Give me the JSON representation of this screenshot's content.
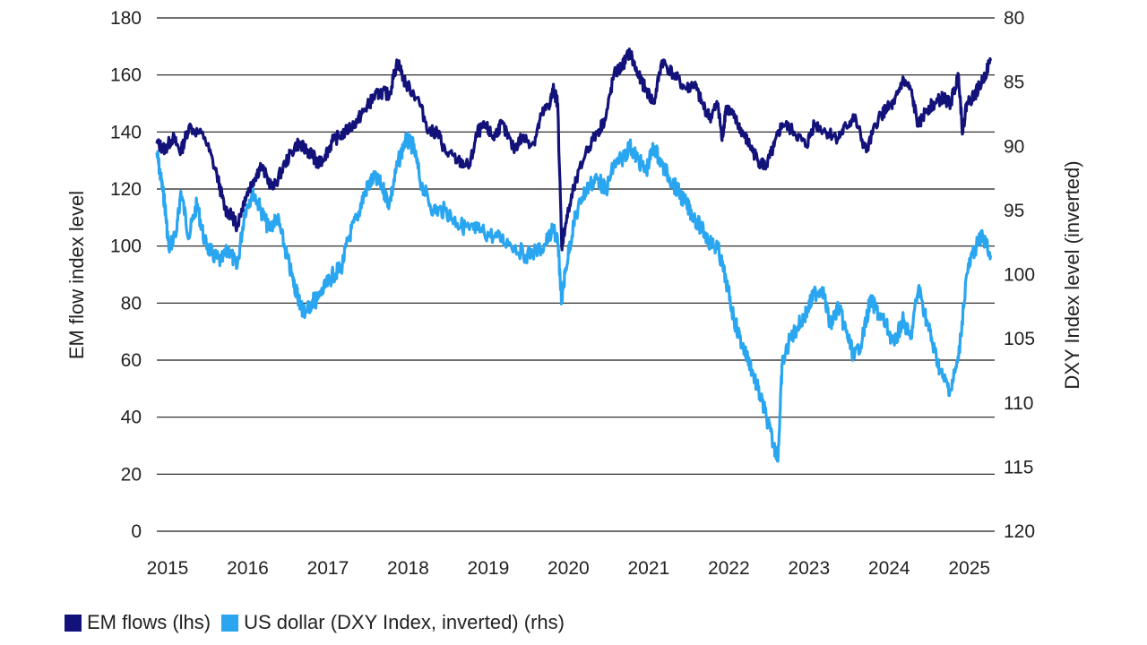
{
  "chart_data": {
    "type": "line",
    "title": "",
    "ylabel_left": "EM flow index level",
    "ylabel_right": "DXY Index level (inverted)",
    "ylim_left": [
      0,
      180
    ],
    "yticks_left": [
      0,
      20,
      40,
      60,
      80,
      100,
      120,
      140,
      160,
      180
    ],
    "ylim_right": [
      120,
      80
    ],
    "yticks_right": [
      80,
      85,
      90,
      95,
      100,
      105,
      110,
      115,
      120
    ],
    "right_axis_inverted": true,
    "xlim": [
      2015.0,
      2025.45
    ],
    "xticks": [
      2015,
      2016,
      2017,
      2018,
      2019,
      2020,
      2021,
      2022,
      2023,
      2024,
      2025
    ],
    "xtick_labels": [
      "2015",
      "2016",
      "2017",
      "2018",
      "2019",
      "2020",
      "2021",
      "2022",
      "2023",
      "2024",
      "2025"
    ],
    "legend": [
      {
        "label": "EM flows (lhs)",
        "color": "#12127a"
      },
      {
        "label": "US dollar (DXY Index, inverted) (rhs)",
        "color": "#2aa6f0"
      }
    ],
    "series": [
      {
        "name": "EM flows (lhs)",
        "axis": "left",
        "color": "#12127a",
        "x": [
          2015.0,
          2015.1,
          2015.2,
          2015.3,
          2015.4,
          2015.6,
          2015.75,
          2015.85,
          2015.95,
          2016.0,
          2016.1,
          2016.2,
          2016.3,
          2016.45,
          2016.6,
          2016.75,
          2016.85,
          2016.95,
          2017.0,
          2017.1,
          2017.2,
          2017.35,
          2017.5,
          2017.6,
          2017.7,
          2017.8,
          2017.9,
          2018.0,
          2018.1,
          2018.25,
          2018.4,
          2018.5,
          2018.6,
          2018.75,
          2018.9,
          2019.0,
          2019.1,
          2019.2,
          2019.3,
          2019.45,
          2019.55,
          2019.7,
          2019.8,
          2019.9,
          2019.95,
          2020.0,
          2020.05,
          2020.1,
          2020.2,
          2020.35,
          2020.5,
          2020.6,
          2020.7,
          2020.8,
          2020.9,
          2021.0,
          2021.1,
          2021.2,
          2021.3,
          2021.45,
          2021.6,
          2021.7,
          2021.8,
          2021.9,
          2022.0,
          2022.05,
          2022.1,
          2022.2,
          2022.3,
          2022.4,
          2022.5,
          2022.6,
          2022.7,
          2022.8,
          2022.95,
          2023.1,
          2023.2,
          2023.35,
          2023.5,
          2023.6,
          2023.7,
          2023.85,
          2024.0,
          2024.1,
          2024.2,
          2024.3,
          2024.4,
          2024.5,
          2024.6,
          2024.7,
          2024.8,
          2024.9,
          2025.0,
          2025.05,
          2025.1,
          2025.2,
          2025.3,
          2025.4
        ],
        "y": [
          136,
          134,
          138,
          133,
          142,
          138,
          125,
          113,
          110,
          107,
          117,
          123,
          128,
          120,
          129,
          136,
          134,
          132,
          128,
          132,
          137,
          140,
          144,
          148,
          152,
          154,
          153,
          165,
          157,
          152,
          140,
          140,
          133,
          130,
          128,
          140,
          142,
          138,
          143,
          134,
          138,
          136,
          146,
          150,
          155,
          150,
          100,
          108,
          120,
          133,
          140,
          145,
          160,
          163,
          168,
          160,
          155,
          150,
          165,
          160,
          155,
          157,
          150,
          145,
          150,
          137,
          149,
          145,
          140,
          135,
          130,
          128,
          135,
          143,
          140,
          135,
          143,
          140,
          138,
          142,
          145,
          133,
          145,
          148,
          150,
          158,
          155,
          142,
          148,
          150,
          152,
          150,
          160,
          140,
          150,
          153,
          158,
          165
        ]
      },
      {
        "name": "US dollar (DXY Index, inverted) (rhs)",
        "axis": "right",
        "color": "#2aa6f0",
        "x": [
          2015.0,
          2015.05,
          2015.1,
          2015.15,
          2015.25,
          2015.3,
          2015.4,
          2015.5,
          2015.6,
          2015.7,
          2015.8,
          2015.9,
          2016.0,
          2016.1,
          2016.2,
          2016.3,
          2016.4,
          2016.5,
          2016.6,
          2016.7,
          2016.75,
          2016.8,
          2016.85,
          2016.95,
          2017.0,
          2017.1,
          2017.2,
          2017.3,
          2017.4,
          2017.5,
          2017.6,
          2017.7,
          2017.8,
          2017.9,
          2018.0,
          2018.1,
          2018.2,
          2018.3,
          2018.45,
          2018.6,
          2018.75,
          2018.9,
          2019.0,
          2019.2,
          2019.4,
          2019.6,
          2019.8,
          2019.95,
          2020.0,
          2020.05,
          2020.1,
          2020.2,
          2020.3,
          2020.4,
          2020.5,
          2020.6,
          2020.7,
          2020.8,
          2020.9,
          2021.0,
          2021.1,
          2021.2,
          2021.3,
          2021.4,
          2021.5,
          2021.6,
          2021.7,
          2021.8,
          2021.9,
          2022.0,
          2022.1,
          2022.2,
          2022.3,
          2022.4,
          2022.5,
          2022.6,
          2022.7,
          2022.75,
          2022.8,
          2022.9,
          2023.0,
          2023.1,
          2023.2,
          2023.3,
          2023.4,
          2023.5,
          2023.6,
          2023.7,
          2023.8,
          2023.9,
          2024.0,
          2024.1,
          2024.2,
          2024.3,
          2024.4,
          2024.5,
          2024.6,
          2024.7,
          2024.8,
          2024.9,
          2025.0,
          2025.1,
          2025.2,
          2025.3,
          2025.4
        ],
        "y": [
          90.5,
          92.5,
          94.5,
          98.0,
          96.5,
          93.5,
          97.0,
          94.5,
          97.5,
          98.5,
          99.0,
          98.0,
          99.5,
          95.0,
          93.5,
          95.0,
          96.5,
          95.5,
          98.0,
          100.5,
          101.5,
          102.5,
          103.0,
          102.0,
          102.0,
          101.0,
          100.0,
          99.5,
          97.0,
          95.5,
          93.5,
          92.5,
          93.0,
          94.5,
          91.5,
          89.5,
          90.0,
          93.0,
          95.0,
          95.0,
          96.0,
          96.5,
          96.5,
          97.0,
          97.5,
          98.5,
          98.0,
          96.5,
          97.5,
          102.0,
          99.5,
          96.0,
          94.0,
          93.0,
          92.5,
          93.5,
          91.5,
          91.0,
          90.0,
          91.0,
          92.0,
          90.0,
          91.5,
          92.5,
          93.5,
          94.5,
          95.5,
          96.5,
          97.5,
          98.0,
          100.5,
          103.5,
          105.5,
          107.0,
          109.0,
          111.0,
          113.5,
          114.0,
          107.0,
          105.0,
          104.0,
          103.0,
          101.5,
          101.0,
          104.0,
          102.5,
          104.5,
          106.5,
          105.0,
          102.0,
          103.0,
          104.0,
          105.5,
          103.5,
          105.0,
          101.0,
          103.5,
          106.0,
          108.0,
          109.0,
          106.5,
          100.0,
          98.0,
          97.0,
          98.5
        ]
      }
    ]
  }
}
